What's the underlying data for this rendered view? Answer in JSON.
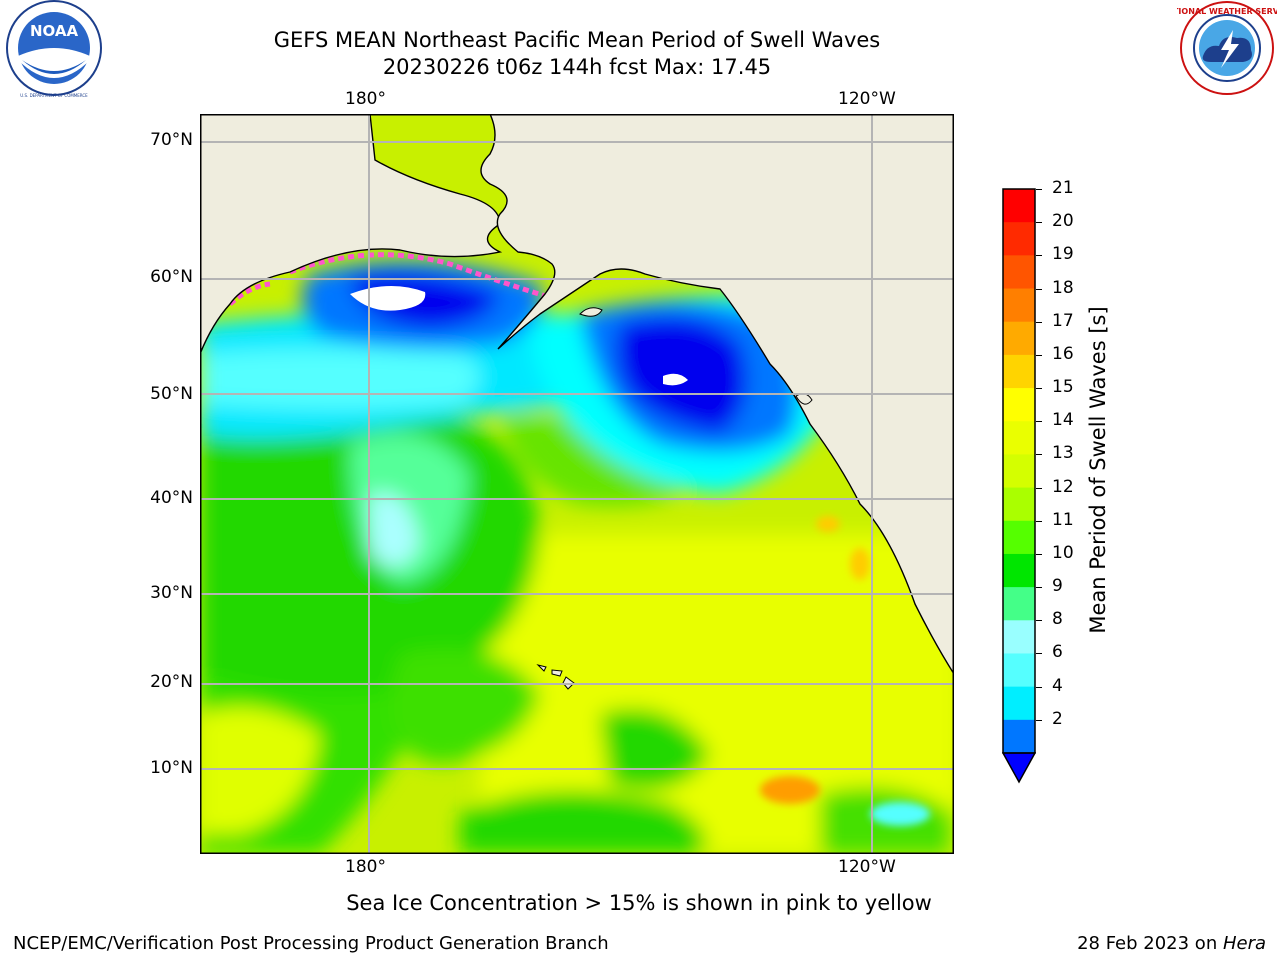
{
  "header": {
    "title_line1": "GEFS MEAN Northeast Pacific Mean Period of Swell Waves",
    "title_line2": "20230226 t06z 144h fcst   Max: 17.45"
  },
  "logos": {
    "noaa_text": "NOAA",
    "noaa_ring_text": "NATIONAL OCEANIC AND ATMOSPHERIC ADMINISTRATION",
    "noaa_bottom_text": "U.S. DEPARTMENT OF COMMERCE",
    "nws_ring_text": "NATIONAL WEATHER SERVICE"
  },
  "map": {
    "lon_labels_top": [
      "180°",
      "120°W"
    ],
    "lon_labels_bottom": [
      "180°",
      "120°W"
    ],
    "lat_labels": [
      "70°N",
      "60°N",
      "50°N",
      "40°N",
      "30°N",
      "20°N",
      "10°N"
    ]
  },
  "colorbar": {
    "label": "Mean Period of Swell Waves [s]",
    "ticks": [
      "21",
      "20",
      "19",
      "18",
      "17",
      "16",
      "15",
      "14",
      "13",
      "12",
      "11",
      "10",
      "9",
      "8",
      "6",
      "4",
      "2"
    ],
    "colors": [
      "#ff0000",
      "#ff2a00",
      "#ff5500",
      "#ff7f00",
      "#ffaa00",
      "#ffd400",
      "#ffff00",
      "#eaff00",
      "#d4ff00",
      "#aaff00",
      "#55ff00",
      "#00e600",
      "#44ff88",
      "#99ffff",
      "#55ffff",
      "#00eeff",
      "#0077ff",
      "#0000ff"
    ]
  },
  "footer": {
    "note": "Sea Ice Concentration > 15% is shown in pink to yellow",
    "org": "NCEP/EMC/Verification Post Processing Product Generation Branch",
    "date": "28 Feb 2023 on ",
    "machine": "Hera"
  }
}
